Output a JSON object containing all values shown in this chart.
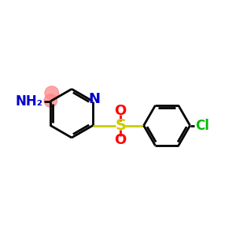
{
  "background_color": "#ffffff",
  "bond_color": "#000000",
  "N_color": "#0000cd",
  "S_color": "#cccc00",
  "O_color": "#ff0000",
  "Cl_color": "#00bb00",
  "NH2_color": "#0000cd",
  "highlight_color": "#ff8888",
  "line_width": 2.0,
  "font_size": 12,
  "fig_size": [
    3.0,
    3.0
  ],
  "dpi": 100,
  "xlim": [
    0,
    10
  ],
  "ylim": [
    0,
    10
  ]
}
